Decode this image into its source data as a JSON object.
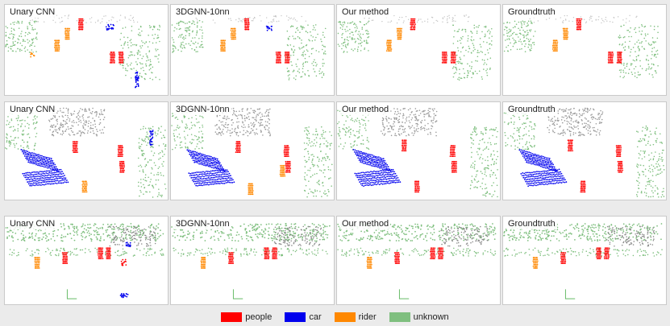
{
  "colors": {
    "people": "#ff0000",
    "car": "#0000ee",
    "rider": "#ff8800",
    "unknown": "#7fbf7f",
    "background_points": "#c4c4c4",
    "crosshair": "#66bb66"
  },
  "rows": [
    {
      "name": "row-1",
      "panels": [
        "Unary CNN",
        "3DGNN-10nn",
        "Our method",
        "Groundtruth"
      ]
    },
    {
      "name": "row-2",
      "panels": [
        "Unary CNN",
        "3DGNN-10nn",
        "Our method",
        "Groundtruth"
      ]
    },
    {
      "name": "row-3",
      "panels": [
        "Unary CNN",
        "3DGNN-10nn",
        "Our method",
        "Groundtruth"
      ]
    }
  ],
  "legend": [
    {
      "label": "people",
      "color": "#ff0000"
    },
    {
      "label": "car",
      "color": "#0000ee"
    },
    {
      "label": "rider",
      "color": "#ff8800"
    },
    {
      "label": "unknown",
      "color": "#7fbf7f"
    }
  ]
}
